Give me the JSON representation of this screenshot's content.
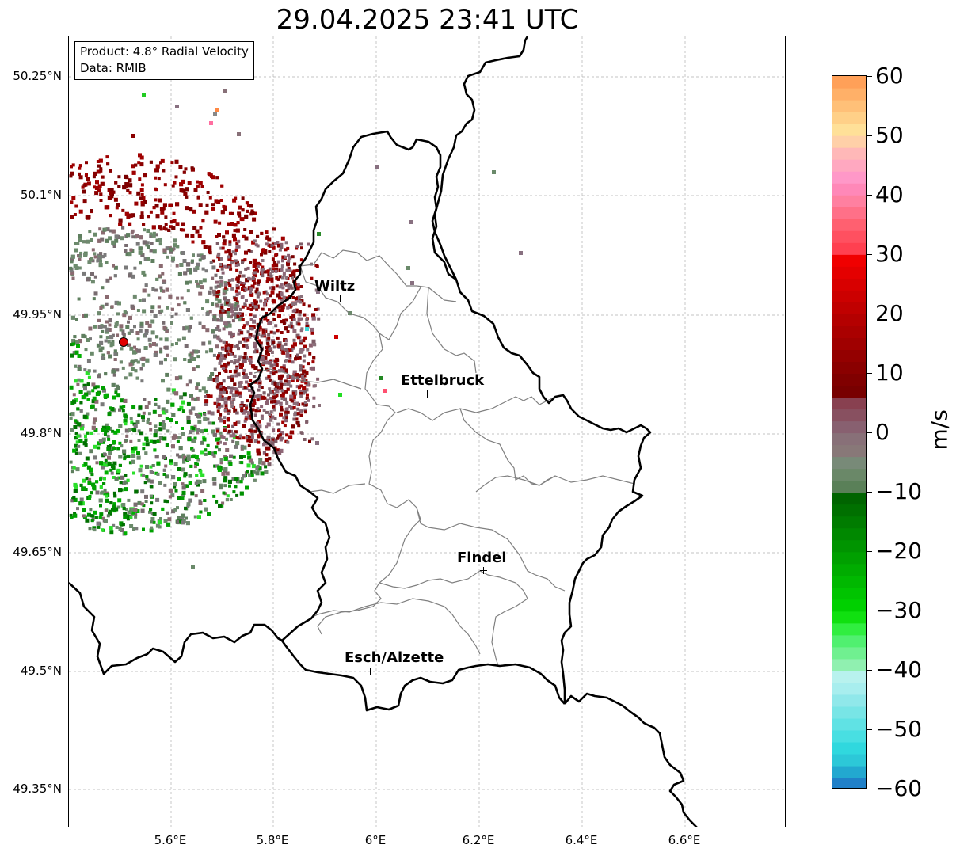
{
  "title": "29.04.2025 23:41 UTC",
  "product_box": {
    "line1": "Product: 4.8° Radial Velocity",
    "line2": "Data: RMIB"
  },
  "lat_labels": [
    "50.25°N",
    "50.1°N",
    "49.95°N",
    "49.8°N",
    "49.65°N",
    "49.5°N",
    "49.35°N"
  ],
  "lon_labels": [
    "5.6°E",
    "5.8°E",
    "6°E",
    "6.2°E",
    "6.4°E",
    "6.6°E"
  ],
  "cities": [
    {
      "name": "Wiltz"
    },
    {
      "name": "Ettelbruck"
    },
    {
      "name": "Findel"
    },
    {
      "name": "Esch/Alzette"
    }
  ],
  "colorbar": {
    "unit": "m/s",
    "tick_labels": [
      "60",
      "50",
      "40",
      "30",
      "20",
      "10",
      "0",
      "−10",
      "−20",
      "−30",
      "−40",
      "−50",
      "−60"
    ],
    "min": -60,
    "max": 60
  },
  "colors": {
    "radar_site": "#e00000",
    "border": "#000000",
    "canton": "#808080",
    "grid": "#b0b0b0"
  }
}
